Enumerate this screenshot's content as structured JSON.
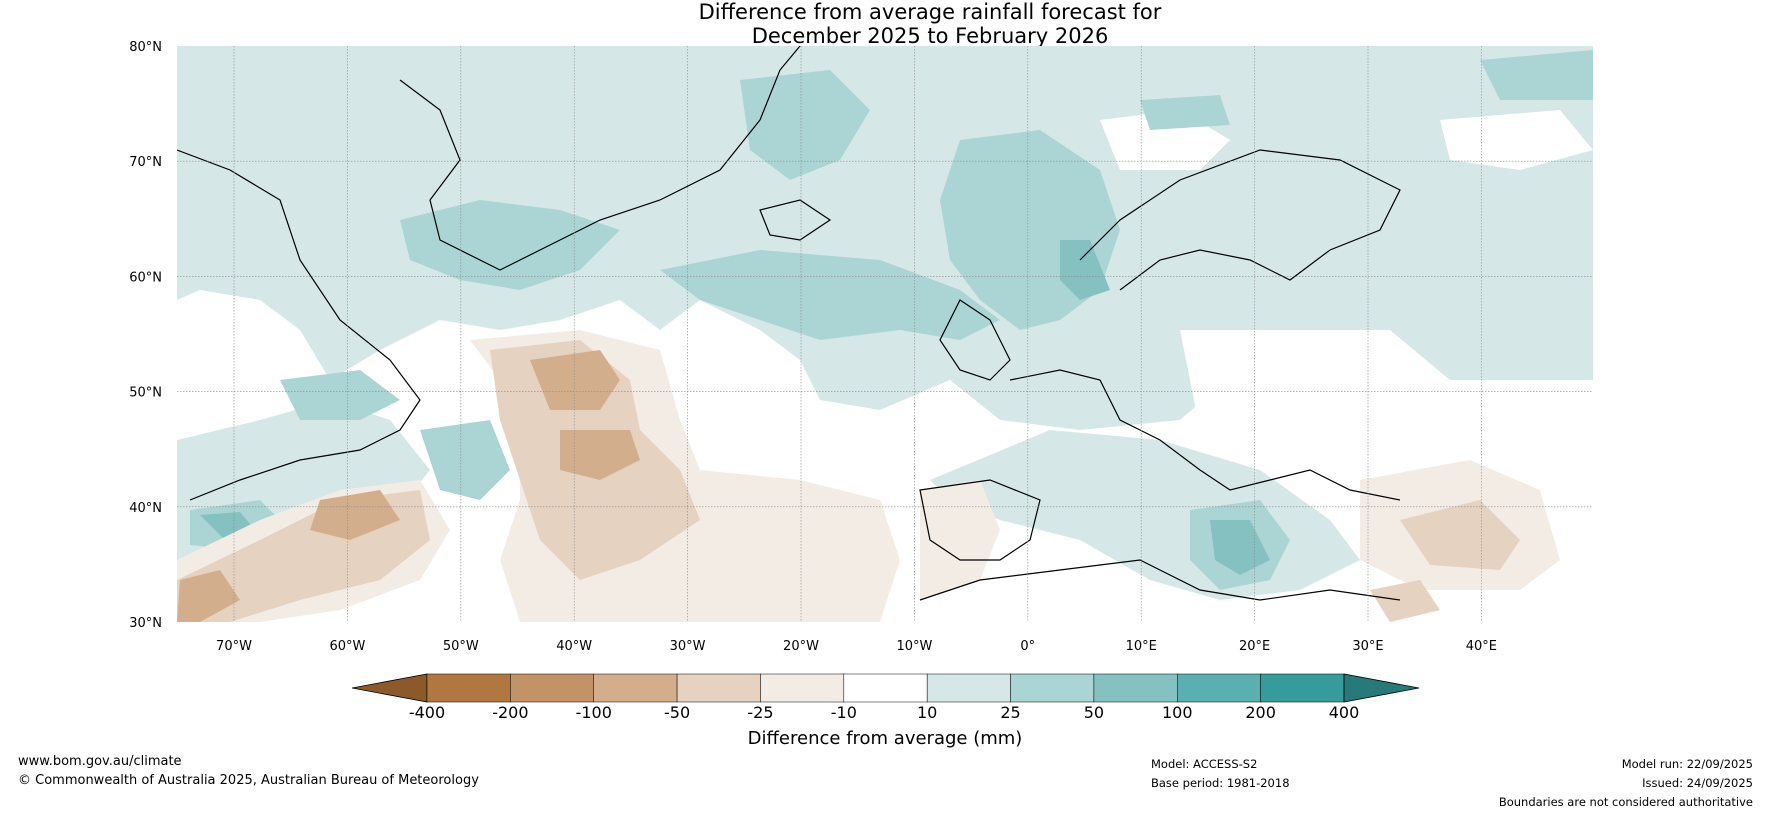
{
  "title": {
    "line1": "Difference from average rainfall forecast for",
    "line2": "December 2025 to February 2026"
  },
  "map": {
    "lat_labels": [
      "80°N",
      "70°N",
      "60°N",
      "50°N",
      "40°N",
      "30°N"
    ],
    "lon_labels": [
      "70°W",
      "60°W",
      "50°W",
      "40°W",
      "30°W",
      "20°W",
      "10°W",
      "0°",
      "10°E",
      "20°E",
      "30°E",
      "40°E"
    ]
  },
  "colorbar": {
    "title": "Difference from average (mm)",
    "tick_labels": [
      "-400",
      "-200",
      "-100",
      "-50",
      "-25",
      "-10",
      "10",
      "25",
      "50",
      "100",
      "200",
      "400"
    ],
    "colors": [
      "#8c5a2a",
      "#b07840",
      "#c39368",
      "#d3ae8d",
      "#e6d2c0",
      "#f2ece5",
      "#ffffff",
      "#d5e8e7",
      "#abd5d4",
      "#84c1c0",
      "#5ab0b0",
      "#369c9b",
      "#267a7a"
    ]
  },
  "footer": {
    "website": "www.bom.gov.au/climate",
    "copyright": "© Commonwealth of Australia 2025, Australian Bureau of Meteorology",
    "model": "Model: ACCESS-S2",
    "base_period": "Base period: 1981-2018",
    "model_run": "Model run: 22/09/2025",
    "issued": "Issued: 24/09/2025",
    "disclaimer": "Boundaries are not considered authoritative"
  }
}
